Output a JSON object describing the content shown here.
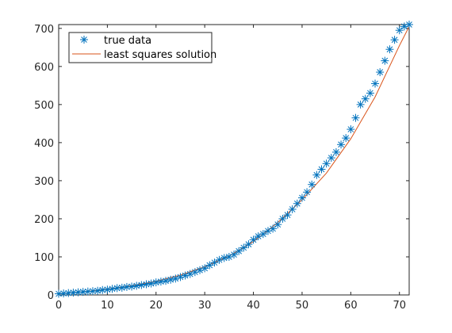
{
  "chart_data": {
    "type": "scatter",
    "xlim": [
      0,
      72
    ],
    "ylim": [
      0,
      710
    ],
    "xticks": [
      0,
      10,
      20,
      30,
      40,
      50,
      60,
      70
    ],
    "yticks": [
      0,
      100,
      200,
      300,
      400,
      500,
      600,
      700
    ],
    "grid": false,
    "legend_position": "top-left",
    "series": [
      {
        "name": "true data",
        "marker": "asterisk",
        "color": "#0072BD",
        "x": [
          0,
          1,
          2,
          3,
          4,
          5,
          6,
          7,
          8,
          9,
          10,
          11,
          12,
          13,
          14,
          15,
          16,
          17,
          18,
          19,
          20,
          21,
          22,
          23,
          24,
          25,
          26,
          27,
          28,
          29,
          30,
          31,
          32,
          33,
          34,
          35,
          36,
          37,
          38,
          39,
          40,
          41,
          42,
          43,
          44,
          45,
          46,
          47,
          48,
          49,
          50,
          51,
          52,
          53,
          54,
          55,
          56,
          57,
          58,
          59,
          60,
          61,
          62,
          63,
          64,
          65,
          66,
          67,
          68,
          69,
          70,
          71,
          72
        ],
        "y": [
          3,
          4,
          5,
          6,
          7,
          8,
          9,
          10,
          11,
          13,
          14,
          16,
          18,
          19,
          21,
          22,
          24,
          26,
          28,
          30,
          33,
          35,
          37,
          40,
          43,
          47,
          51,
          55,
          60,
          65,
          70,
          78,
          85,
          92,
          97,
          100,
          106,
          115,
          124,
          133,
          145,
          154,
          160,
          168,
          174,
          185,
          200,
          210,
          225,
          240,
          255,
          270,
          290,
          315,
          330,
          345,
          360,
          375,
          395,
          412,
          435,
          465,
          500,
          515,
          530,
          555,
          585,
          615,
          645,
          670,
          695,
          705,
          710
        ]
      },
      {
        "name": "least squares solution",
        "marker": "none",
        "color": "#D95319",
        "x": [
          0,
          5,
          10,
          15,
          20,
          25,
          30,
          35,
          40,
          45,
          50,
          55,
          60,
          65,
          70,
          72
        ],
        "y": [
          3,
          8,
          15,
          24,
          36,
          52,
          74,
          102,
          140,
          190,
          250,
          320,
          410,
          520,
          655,
          705
        ]
      }
    ]
  },
  "legend": {
    "items": [
      {
        "label": "true data"
      },
      {
        "label": "least squares solution"
      }
    ]
  }
}
